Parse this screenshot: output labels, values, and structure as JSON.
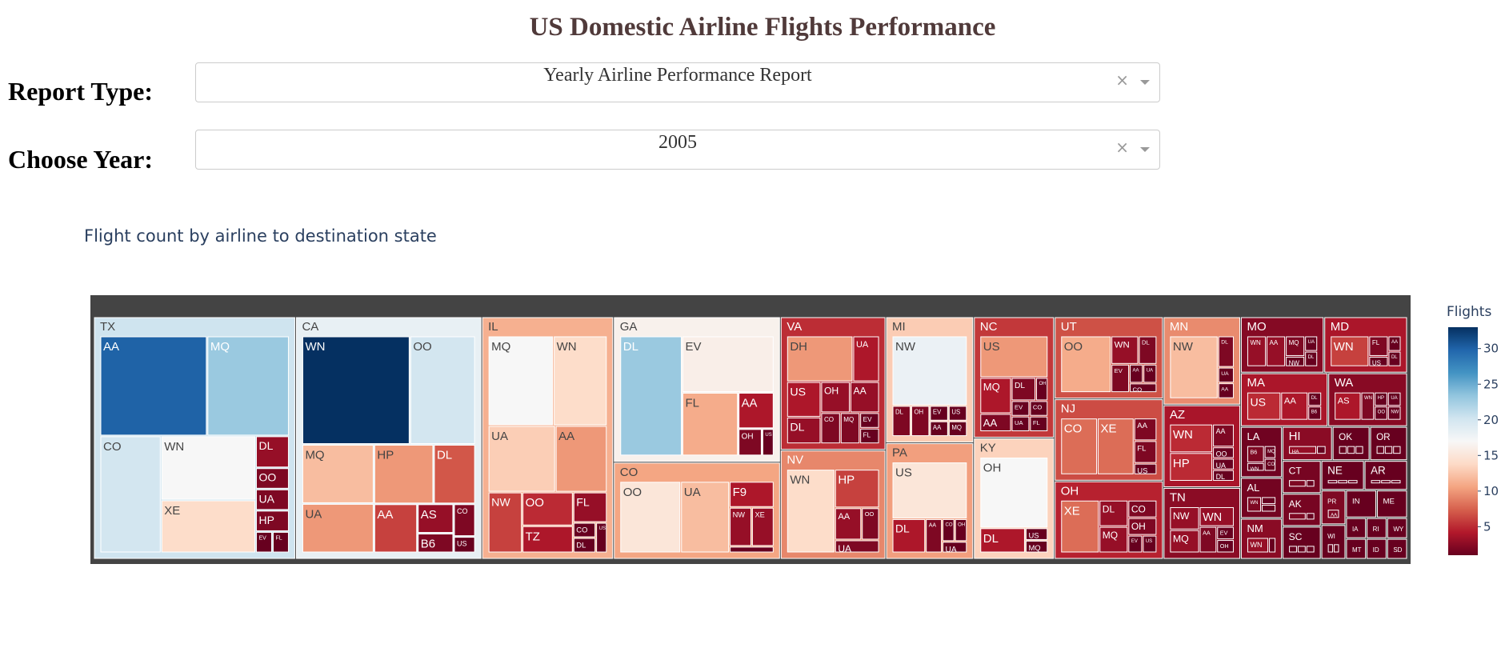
{
  "header": {
    "title": "US Domestic Airline Flights Performance"
  },
  "controls": {
    "report_type_label": "Report Type:",
    "report_type_value": "Yearly Airline Performance Report",
    "year_label": "Choose Year:",
    "year_value": "2005",
    "clear_glyph": "×"
  },
  "chart_title": "Flight count by airline to destination state",
  "chart_data": {
    "type": "treemap",
    "value_label": "Flights",
    "colorscale": "RdBu",
    "color_range": [
      1,
      33
    ],
    "colorbar_ticks": [
      5,
      10,
      15,
      20,
      25,
      30
    ],
    "states": [
      {
        "state": "TX",
        "airlines": [
          {
            "name": "AA",
            "value": 30
          },
          {
            "name": "MQ",
            "value": 23
          },
          {
            "name": "CO",
            "value": 20
          },
          {
            "name": "XE",
            "value": 14
          },
          {
            "name": "WN",
            "value": 17
          },
          {
            "name": "DL",
            "value": 3
          },
          {
            "name": "OO",
            "value": 2
          },
          {
            "name": "UA",
            "value": 2
          },
          {
            "name": "HP",
            "value": 2
          },
          {
            "name": "EV",
            "value": 1
          },
          {
            "name": "FL",
            "value": 1
          }
        ]
      },
      {
        "state": "CA",
        "airlines": [
          {
            "name": "WN",
            "value": 33
          },
          {
            "name": "OO",
            "value": 20
          },
          {
            "name": "MQ",
            "value": 12
          },
          {
            "name": "UA",
            "value": 10
          },
          {
            "name": "DL",
            "value": 7
          },
          {
            "name": "AA",
            "value": 6
          },
          {
            "name": "HP",
            "value": 10
          },
          {
            "name": "AS",
            "value": 3
          },
          {
            "name": "B6",
            "value": 2
          },
          {
            "name": "CO",
            "value": 2
          },
          {
            "name": "US",
            "value": 1
          }
        ]
      },
      {
        "state": "IL",
        "airlines": [
          {
            "name": "MQ",
            "value": 17
          },
          {
            "name": "WN",
            "value": 14
          },
          {
            "name": "AA",
            "value": 10
          },
          {
            "name": "UA",
            "value": 13
          },
          {
            "name": "NW",
            "value": 6
          },
          {
            "name": "OO",
            "value": 5
          },
          {
            "name": "FL",
            "value": 3
          },
          {
            "name": "TZ",
            "value": 4
          },
          {
            "name": "CO",
            "value": 1
          },
          {
            "name": "DL",
            "value": 1
          },
          {
            "name": "US",
            "value": 1
          }
        ]
      },
      {
        "state": "GA",
        "airlines": [
          {
            "name": "DL",
            "value": 23
          },
          {
            "name": "EV",
            "value": 16
          },
          {
            "name": "FL",
            "value": 11
          },
          {
            "name": "AA",
            "value": 4
          },
          {
            "name": "OH",
            "value": 2
          },
          {
            "name": "US",
            "value": 1
          }
        ]
      },
      {
        "state": "VA",
        "airlines": [
          {
            "name": "DH",
            "value": 10
          },
          {
            "name": "UA",
            "value": 4
          },
          {
            "name": "US",
            "value": 4
          },
          {
            "name": "DL",
            "value": 3
          },
          {
            "name": "OH",
            "value": 3
          },
          {
            "name": "AA",
            "value": 3
          },
          {
            "name": "CO",
            "value": 2
          },
          {
            "name": "MQ",
            "value": 2
          },
          {
            "name": "EV",
            "value": 1
          },
          {
            "name": "FL",
            "value": 1
          }
        ]
      },
      {
        "state": "MI",
        "airlines": [
          {
            "name": "NW",
            "value": 18
          },
          {
            "name": "DL",
            "value": 2
          },
          {
            "name": "OH",
            "value": 2
          },
          {
            "name": "EV",
            "value": 1
          },
          {
            "name": "AA",
            "value": 1
          },
          {
            "name": "US",
            "value": 1
          },
          {
            "name": "MQ",
            "value": 1
          }
        ]
      },
      {
        "state": "NC",
        "airlines": [
          {
            "name": "US",
            "value": 10
          },
          {
            "name": "MQ",
            "value": 4
          },
          {
            "name": "AA",
            "value": 2
          },
          {
            "name": "DL",
            "value": 2
          },
          {
            "name": "OH",
            "value": 1
          },
          {
            "name": "EV",
            "value": 1
          },
          {
            "name": "UA",
            "value": 1
          },
          {
            "name": "CO",
            "value": 1
          },
          {
            "name": "FL",
            "value": 1
          }
        ]
      },
      {
        "state": "UT",
        "airlines": [
          {
            "name": "OO",
            "value": 11
          },
          {
            "name": "WN",
            "value": 3
          },
          {
            "name": "DL",
            "value": 2
          },
          {
            "name": "EV",
            "value": 2
          },
          {
            "name": "AA",
            "value": 1
          },
          {
            "name": "UA",
            "value": 1
          },
          {
            "name": "CO",
            "value": 1
          }
        ]
      },
      {
        "state": "AZ",
        "airlines": [
          {
            "name": "WN",
            "value": 5
          },
          {
            "name": "HP",
            "value": 5
          },
          {
            "name": "AA",
            "value": 2
          },
          {
            "name": "OO",
            "value": 1
          },
          {
            "name": "UA",
            "value": 1
          },
          {
            "name": "DL",
            "value": 1
          }
        ]
      },
      {
        "state": "MO",
        "airlines": [
          {
            "name": "WN",
            "value": 3
          },
          {
            "name": "AA",
            "value": 3
          },
          {
            "name": "MQ",
            "value": 2
          },
          {
            "name": "NW",
            "value": 1
          },
          {
            "name": "UA",
            "value": 1
          },
          {
            "name": "DL",
            "value": 1
          }
        ]
      },
      {
        "state": "WA",
        "airlines": [
          {
            "name": "AS",
            "value": 4
          },
          {
            "name": "WN",
            "value": 2
          },
          {
            "name": "HP",
            "value": 1
          },
          {
            "name": "UA",
            "value": 1
          },
          {
            "name": "OO",
            "value": 1
          },
          {
            "name": "NW",
            "value": 1
          }
        ]
      },
      {
        "state": "MD",
        "airlines": [
          {
            "name": "WN",
            "value": 6
          },
          {
            "name": "FL",
            "value": 2
          },
          {
            "name": "US",
            "value": 1
          },
          {
            "name": "AA",
            "value": 1
          },
          {
            "name": "DL",
            "value": 1
          }
        ]
      },
      {
        "state": "CO",
        "airlines": [
          {
            "name": "OO",
            "value": 15
          },
          {
            "name": "UA",
            "value": 12
          },
          {
            "name": "F9",
            "value": 4
          },
          {
            "name": "NW",
            "value": 3
          },
          {
            "name": "XE",
            "value": 3
          },
          {
            "name": "OH",
            "value": 1
          }
        ]
      },
      {
        "state": "PA",
        "airlines": [
          {
            "name": "US",
            "value": 15
          },
          {
            "name": "DL",
            "value": 4
          },
          {
            "name": "AA",
            "value": 2
          },
          {
            "name": "CO",
            "value": 1
          },
          {
            "name": "OH",
            "value": 1
          },
          {
            "name": "UA",
            "value": 1
          }
        ]
      },
      {
        "state": "KY",
        "airlines": [
          {
            "name": "OH",
            "value": 17
          },
          {
            "name": "DL",
            "value": 4
          },
          {
            "name": "US",
            "value": 1
          },
          {
            "name": "MQ",
            "value": 1
          }
        ]
      },
      {
        "state": "NV",
        "airlines": [
          {
            "name": "WN",
            "value": 14
          },
          {
            "name": "HP",
            "value": 6
          },
          {
            "name": "AA",
            "value": 3
          },
          {
            "name": "OO",
            "value": 2
          },
          {
            "name": "UA",
            "value": 2
          }
        ]
      },
      {
        "state": "NJ",
        "airlines": [
          {
            "name": "CO",
            "value": 8
          },
          {
            "name": "XE",
            "value": 8
          },
          {
            "name": "AA",
            "value": 2
          },
          {
            "name": "FL",
            "value": 2
          },
          {
            "name": "US",
            "value": 1
          }
        ]
      },
      {
        "state": "OH",
        "airlines": [
          {
            "name": "XE",
            "value": 8
          },
          {
            "name": "DL",
            "value": 3
          },
          {
            "name": "MQ",
            "value": 3
          },
          {
            "name": "CO",
            "value": 2
          },
          {
            "name": "OH",
            "value": 2
          },
          {
            "name": "EV",
            "value": 1
          },
          {
            "name": "US",
            "value": 1
          }
        ]
      },
      {
        "state": "TN",
        "airlines": [
          {
            "name": "NW",
            "value": 3
          },
          {
            "name": "MQ",
            "value": 3
          },
          {
            "name": "AA",
            "value": 2
          },
          {
            "name": "WN",
            "value": 3
          },
          {
            "name": "EV",
            "value": 1
          },
          {
            "name": "OH",
            "value": 1
          }
        ]
      },
      {
        "state": "MA",
        "airlines": [
          {
            "name": "US",
            "value": 5
          },
          {
            "name": "AA",
            "value": 4
          },
          {
            "name": "DL",
            "value": 1
          },
          {
            "name": "B6",
            "value": 1
          }
        ]
      },
      {
        "state": "MN",
        "airlines": [
          {
            "name": "NW",
            "value": 12
          },
          {
            "name": "DL",
            "value": 2
          },
          {
            "name": "UA",
            "value": 1
          },
          {
            "name": "AA",
            "value": 1
          }
        ]
      },
      {
        "state": "LA",
        "airlines": [
          {
            "name": "B6",
            "value": 2
          },
          {
            "name": "WN",
            "value": 1
          },
          {
            "name": "MQ",
            "value": 1
          },
          {
            "name": "CO",
            "value": 1
          }
        ]
      },
      {
        "state": "AL",
        "airlines": [
          {
            "name": "WN",
            "value": 2
          },
          {
            "name": "DL",
            "value": 1
          },
          {
            "name": "EV",
            "value": 1
          }
        ]
      },
      {
        "state": "NM",
        "airlines": [
          {
            "name": "WN",
            "value": 3
          },
          {
            "name": "AA",
            "value": 1
          }
        ]
      },
      {
        "state": "OK",
        "airlines": [
          {
            "name": "WN",
            "value": 1
          },
          {
            "name": "AA",
            "value": 1
          },
          {
            "name": "CO",
            "value": 1
          }
        ]
      },
      {
        "state": "OR",
        "airlines": [
          {
            "name": "AS",
            "value": 1
          },
          {
            "name": "UA",
            "value": 1
          },
          {
            "name": "WN",
            "value": 1
          }
        ]
      },
      {
        "state": "CT",
        "airlines": [
          {
            "name": "WN",
            "value": 2
          },
          {
            "name": "AA",
            "value": 1
          }
        ]
      },
      {
        "state": "AK",
        "airlines": [
          {
            "name": "AS",
            "value": 2
          },
          {
            "name": "NW",
            "value": 1
          }
        ]
      },
      {
        "state": "SC",
        "airlines": [
          {
            "name": "DL",
            "value": 1
          },
          {
            "name": "US",
            "value": 1
          },
          {
            "name": "MQ",
            "value": 1
          }
        ]
      },
      {
        "state": "NE",
        "airlines": [
          {
            "name": "UA",
            "value": 1
          },
          {
            "name": "NW",
            "value": 1
          },
          {
            "name": "AA",
            "value": 1
          }
        ]
      },
      {
        "state": "PR",
        "airlines": [
          {
            "name": "AA",
            "value": 2
          }
        ]
      },
      {
        "state": "HI",
        "airlines": [
          {
            "name": "HA",
            "value": 3
          },
          {
            "name": "UA",
            "value": 1
          }
        ]
      },
      {
        "state": "AR",
        "airlines": [
          {
            "name": "MQ",
            "value": 1
          },
          {
            "name": "DL",
            "value": 1
          },
          {
            "name": "NW",
            "value": 1
          }
        ]
      },
      {
        "state": "WI",
        "airlines": [
          {
            "name": "NW",
            "value": 1
          },
          {
            "name": "MQ",
            "value": 1
          }
        ]
      },
      {
        "state": "IA",
        "airlines": [
          {
            "name": "NW",
            "value": 1
          }
        ]
      },
      {
        "state": "MT",
        "airlines": [
          {
            "name": "NW",
            "value": 1
          }
        ]
      },
      {
        "state": "IN",
        "airlines": [
          {
            "name": "NW",
            "value": 1
          },
          {
            "name": "US",
            "value": 1
          }
        ]
      },
      {
        "state": "ME",
        "airlines": [
          {
            "name": "US",
            "value": 1
          },
          {
            "name": "DL",
            "value": 1
          }
        ]
      },
      {
        "state": "RI",
        "airlines": [
          {
            "name": "US",
            "value": 1
          }
        ]
      },
      {
        "state": "WY",
        "airlines": [
          {
            "name": "OO",
            "value": 1
          }
        ]
      },
      {
        "state": "ID",
        "airlines": [
          {
            "name": "OO",
            "value": 1
          }
        ]
      },
      {
        "state": "SD",
        "airlines": [
          {
            "name": "NW",
            "value": 1
          }
        ]
      }
    ]
  }
}
